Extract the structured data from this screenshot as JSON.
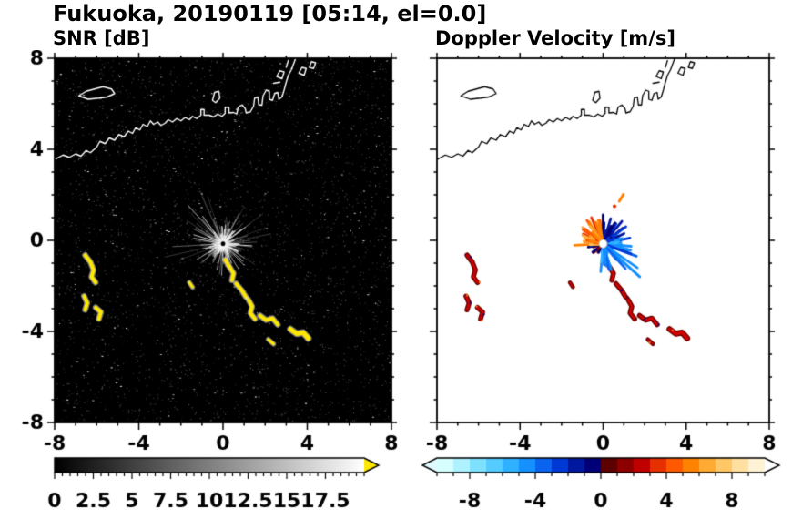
{
  "figure": {
    "title": "Fukuoka, 20190119 [05:14, el=0.0]"
  },
  "chart_data": [
    {
      "type": "heatmap",
      "title": "SNR [dB]",
      "variable": "Signal-to-noise ratio",
      "xlim": [
        -8,
        8
      ],
      "ylim": [
        -8,
        8
      ],
      "xticks": [
        -8,
        -4,
        0,
        4,
        8
      ],
      "yticks": [
        -8,
        -4,
        0,
        4,
        8
      ],
      "minor_tick_step": 1,
      "show_y_labels": true,
      "background_color": "#000000",
      "coastline_color": "#ffffff",
      "radar_center": [
        0,
        -0.15
      ],
      "echo_color": "#ffe800",
      "colorbar": {
        "range": [
          0,
          20
        ],
        "tick_labels": [
          0,
          2.5,
          5,
          7.5,
          10,
          12.5,
          15,
          17.5
        ],
        "minor_step": 0.5,
        "gradient": [
          "#000000",
          "#ffffff"
        ],
        "over_arrow_color": "#ffe800"
      }
    },
    {
      "type": "heatmap",
      "title": "Doppler Velocity [m/s]",
      "variable": "Doppler velocity",
      "xlim": [
        -8,
        8
      ],
      "ylim": [
        -8,
        8
      ],
      "xticks": [
        -8,
        -4,
        0,
        4,
        8
      ],
      "yticks": [
        -8,
        -4,
        0,
        4,
        8
      ],
      "minor_tick_step": 1,
      "show_y_labels": false,
      "background_color": "#ffffff",
      "coastline_color": "#000000",
      "radar_center": [
        0,
        -0.15
      ],
      "pattern": {
        "warm_sector_deg": [
          95,
          185
        ],
        "warm_v": [
          3,
          7
        ],
        "navy_sector_deg": [
          25,
          95
        ],
        "navy_v": [
          -2.3,
          -0.4
        ],
        "blue_sector_deg": [
          -95,
          25
        ],
        "blue_v": [
          -6.5,
          -2.6
        ]
      },
      "colorbar": {
        "range": [
          -10,
          10
        ],
        "tick_labels": [
          -8,
          -4,
          0,
          4,
          8
        ],
        "minor_step": 1,
        "colors": [
          "#d8ffff",
          "#aef2ff",
          "#7ee2ff",
          "#55ccff",
          "#2fb1ff",
          "#1590ff",
          "#0a64f0",
          "#0038d6",
          "#0018a0",
          "#000078",
          "#5c0000",
          "#8e0000",
          "#c00000",
          "#e63000",
          "#ff5a00",
          "#ff8200",
          "#ffaa33",
          "#ffc766",
          "#ffe0a0",
          "#fff3d6"
        ],
        "under_arrow_color": "#e0fbff",
        "over_arrow_color": "#ffffff"
      }
    }
  ],
  "overlay": {
    "coastline_segments": [
      [
        [
          -8,
          3.55
        ],
        [
          -7.6,
          3.75
        ],
        [
          -7.3,
          3.65
        ],
        [
          -7,
          3.8
        ],
        [
          -6.75,
          3.7
        ],
        [
          -6.5,
          3.95
        ],
        [
          -6.3,
          3.85
        ],
        [
          -6,
          4.1
        ],
        [
          -5.85,
          4.35
        ],
        [
          -5.6,
          4.25
        ],
        [
          -5.4,
          4.5
        ],
        [
          -5.15,
          4.4
        ],
        [
          -4.95,
          4.65
        ],
        [
          -4.7,
          4.55
        ],
        [
          -4.5,
          4.8
        ],
        [
          -4.3,
          4.7
        ],
        [
          -4.15,
          4.95
        ],
        [
          -3.95,
          4.85
        ],
        [
          -3.8,
          5.1
        ],
        [
          -3.6,
          5.0
        ],
        [
          -3.45,
          5.25
        ],
        [
          -3.3,
          5.1
        ],
        [
          -3.1,
          5.2
        ],
        [
          -2.95,
          5.05
        ],
        [
          -2.75,
          5.15
        ],
        [
          -2.6,
          5.3
        ],
        [
          -2.4,
          5.2
        ],
        [
          -2.2,
          5.35
        ],
        [
          -2,
          5.25
        ],
        [
          -1.8,
          5.4
        ],
        [
          -1.6,
          5.3
        ],
        [
          -1.45,
          5.45
        ],
        [
          -1.25,
          5.35
        ],
        [
          -1.05,
          5.5
        ],
        [
          -1.05,
          5.75
        ],
        [
          -0.9,
          5.75
        ],
        [
          -0.9,
          5.5
        ],
        [
          -0.65,
          5.5
        ],
        [
          -0.45,
          5.42
        ],
        [
          -0.25,
          5.55
        ],
        [
          -0.05,
          5.45
        ],
        [
          0.1,
          5.58
        ],
        [
          0.1,
          5.85
        ],
        [
          0.28,
          5.85
        ],
        [
          0.28,
          5.6
        ],
        [
          0.5,
          5.62
        ],
        [
          0.65,
          5.55
        ],
        [
          0.72,
          5.85
        ],
        [
          0.9,
          5.95
        ],
        [
          1.05,
          5.8
        ],
        [
          1.1,
          5.6
        ],
        [
          1.3,
          5.65
        ],
        [
          1.45,
          5.9
        ],
        [
          1.5,
          6.25
        ],
        [
          1.65,
          6.3
        ],
        [
          1.7,
          5.95
        ],
        [
          1.85,
          5.95
        ],
        [
          1.9,
          6.35
        ],
        [
          2.05,
          6.6
        ],
        [
          2.2,
          6.55
        ],
        [
          2.2,
          6.2
        ],
        [
          2.35,
          6.15
        ],
        [
          2.45,
          6.45
        ],
        [
          2.6,
          6.5
        ],
        [
          2.65,
          6.2
        ],
        [
          2.8,
          6.3
        ],
        [
          2.9,
          6.6
        ],
        [
          3.0,
          6.95
        ],
        [
          3.1,
          7.25
        ],
        [
          3.25,
          7.5
        ],
        [
          3.35,
          7.75
        ],
        [
          3.45,
          8.0
        ]
      ],
      [
        [
          -6.85,
          6.35
        ],
        [
          -6.5,
          6.55
        ],
        [
          -6.1,
          6.65
        ],
        [
          -5.7,
          6.75
        ],
        [
          -5.3,
          6.65
        ],
        [
          -5.15,
          6.45
        ],
        [
          -5.5,
          6.3
        ],
        [
          -5.9,
          6.25
        ],
        [
          -6.4,
          6.2
        ],
        [
          -6.85,
          6.35
        ]
      ],
      [
        [
          -0.5,
          6.15
        ],
        [
          -0.4,
          6.5
        ],
        [
          -0.2,
          6.55
        ],
        [
          -0.15,
          6.25
        ],
        [
          -0.35,
          6.05
        ],
        [
          -0.5,
          6.15
        ]
      ],
      [
        [
          2.55,
          7.2
        ],
        [
          2.7,
          7.45
        ],
        [
          2.9,
          7.4
        ],
        [
          2.8,
          7.1
        ],
        [
          2.55,
          7.2
        ]
      ],
      [
        [
          3.6,
          7.35
        ],
        [
          3.75,
          7.6
        ],
        [
          3.95,
          7.55
        ],
        [
          3.85,
          7.25
        ],
        [
          3.6,
          7.35
        ]
      ],
      [
        [
          4.1,
          7.6
        ],
        [
          4.2,
          7.85
        ],
        [
          4.4,
          7.8
        ],
        [
          4.3,
          7.55
        ],
        [
          4.1,
          7.6
        ]
      ],
      [
        [
          2.4,
          6.9
        ],
        [
          2.7,
          6.95
        ]
      ],
      [
        [
          3.0,
          7.6
        ],
        [
          3.1,
          7.9
        ]
      ]
    ],
    "echo_chains": [
      {
        "pts": [
          [
            -6.55,
            -0.65
          ],
          [
            -6.3,
            -0.95
          ],
          [
            -6.15,
            -1.3
          ],
          [
            -6.25,
            -1.6
          ],
          [
            -6.05,
            -1.85
          ]
        ],
        "w": 4
      },
      {
        "pts": [
          [
            -6.6,
            -2.45
          ],
          [
            -6.45,
            -2.75
          ],
          [
            -6.55,
            -3.05
          ]
        ],
        "w": 4
      },
      {
        "pts": [
          [
            -6.05,
            -2.95
          ],
          [
            -5.8,
            -3.15
          ],
          [
            -5.9,
            -3.45
          ]
        ],
        "w": 4
      },
      {
        "pts": [
          [
            0.1,
            -0.85
          ],
          [
            0.3,
            -1.15
          ],
          [
            0.5,
            -1.45
          ],
          [
            0.42,
            -1.75
          ]
        ],
        "w": 4
      },
      {
        "pts": [
          [
            0.62,
            -1.9
          ],
          [
            0.88,
            -2.18
          ],
          [
            1.08,
            -2.48
          ]
        ],
        "w": 4
      },
      {
        "pts": [
          [
            1.2,
            -2.6
          ],
          [
            1.38,
            -2.9
          ],
          [
            1.3,
            -3.2
          ],
          [
            1.52,
            -3.45
          ]
        ],
        "w": 4
      },
      {
        "pts": [
          [
            1.75,
            -3.3
          ],
          [
            2.05,
            -3.5
          ],
          [
            2.35,
            -3.42
          ],
          [
            2.6,
            -3.7
          ]
        ],
        "w": 4
      },
      {
        "pts": [
          [
            3.2,
            -3.9
          ],
          [
            3.5,
            -4.1
          ],
          [
            3.8,
            -4.05
          ],
          [
            4.05,
            -4.3
          ]
        ],
        "w": 5
      },
      {
        "pts": [
          [
            2.15,
            -4.35
          ],
          [
            2.4,
            -4.55
          ]
        ],
        "w": 3
      },
      {
        "pts": [
          [
            -1.6,
            -1.85
          ],
          [
            -1.45,
            -2.05
          ]
        ],
        "w": 3
      }
    ]
  }
}
